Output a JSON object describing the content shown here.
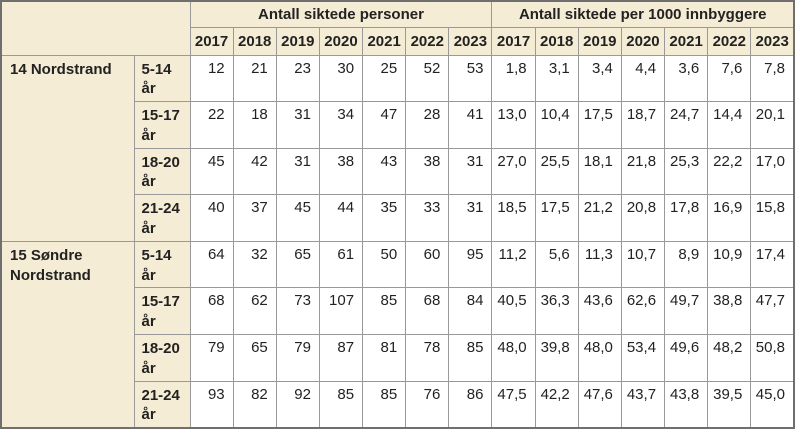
{
  "table": {
    "group_headers": {
      "counts": "Antall siktede personer",
      "per_1000": "Antall siktede per 1000 innbyggere"
    },
    "years": [
      "2017",
      "2018",
      "2019",
      "2020",
      "2021",
      "2022",
      "2023"
    ],
    "sections": [
      {
        "district": "14 Nordstrand",
        "rows": [
          {
            "age": "5-14 år",
            "counts": [
              "12",
              "21",
              "23",
              "30",
              "25",
              "52",
              "53"
            ],
            "rates": [
              "1,8",
              "3,1",
              "3,4",
              "4,4",
              "3,6",
              "7,6",
              "7,8"
            ]
          },
          {
            "age": "15-17 år",
            "counts": [
              "22",
              "18",
              "31",
              "34",
              "47",
              "28",
              "41"
            ],
            "rates": [
              "13,0",
              "10,4",
              "17,5",
              "18,7",
              "24,7",
              "14,4",
              "20,1"
            ]
          },
          {
            "age": "18-20 år",
            "counts": [
              "45",
              "42",
              "31",
              "38",
              "43",
              "38",
              "31"
            ],
            "rates": [
              "27,0",
              "25,5",
              "18,1",
              "21,8",
              "25,3",
              "22,2",
              "17,0"
            ]
          },
          {
            "age": "21-24 år",
            "counts": [
              "40",
              "37",
              "45",
              "44",
              "35",
              "33",
              "31"
            ],
            "rates": [
              "18,5",
              "17,5",
              "21,2",
              "20,8",
              "17,8",
              "16,9",
              "15,8"
            ]
          }
        ]
      },
      {
        "district": "15 Søndre Nordstrand",
        "rows": [
          {
            "age": "5-14 år",
            "counts": [
              "64",
              "32",
              "65",
              "61",
              "50",
              "60",
              "95"
            ],
            "rates": [
              "11,2",
              "5,6",
              "11,3",
              "10,7",
              "8,9",
              "10,9",
              "17,4"
            ]
          },
          {
            "age": "15-17 år",
            "counts": [
              "68",
              "62",
              "73",
              "107",
              "85",
              "68",
              "84"
            ],
            "rates": [
              "40,5",
              "36,3",
              "43,6",
              "62,6",
              "49,7",
              "38,8",
              "47,7"
            ]
          },
          {
            "age": "18-20 år",
            "counts": [
              "79",
              "65",
              "79",
              "87",
              "81",
              "78",
              "85"
            ],
            "rates": [
              "48,0",
              "39,8",
              "48,0",
              "53,4",
              "49,6",
              "48,2",
              "50,8"
            ]
          },
          {
            "age": "21-24 år",
            "counts": [
              "93",
              "82",
              "92",
              "85",
              "85",
              "76",
              "86"
            ],
            "rates": [
              "47,5",
              "42,2",
              "47,6",
              "43,7",
              "43,8",
              "39,5",
              "45,0"
            ]
          }
        ]
      }
    ]
  },
  "colors": {
    "header_beige": "#f5ecd5",
    "cell_white": "#ffffff",
    "grid_border": "#999999",
    "outer_border": "#6f6f6f",
    "text": "#222222"
  },
  "chart_data": {
    "type": "table",
    "title": "",
    "column_groups": [
      "Antall siktede personer",
      "Antall siktede per 1000 innbyggere"
    ],
    "years": [
      2017,
      2018,
      2019,
      2020,
      2021,
      2022,
      2023
    ],
    "rows": [
      {
        "district": "14 Nordstrand",
        "age_group": "5-14 år",
        "antall_siktede_personer": [
          12,
          21,
          23,
          30,
          25,
          52,
          53
        ],
        "antall_siktede_per_1000_innbyggere": [
          1.8,
          3.1,
          3.4,
          4.4,
          3.6,
          7.6,
          7.8
        ]
      },
      {
        "district": "14 Nordstrand",
        "age_group": "15-17 år",
        "antall_siktede_personer": [
          22,
          18,
          31,
          34,
          47,
          28,
          41
        ],
        "antall_siktede_per_1000_innbyggere": [
          13.0,
          10.4,
          17.5,
          18.7,
          24.7,
          14.4,
          20.1
        ]
      },
      {
        "district": "14 Nordstrand",
        "age_group": "18-20 år",
        "antall_siktede_personer": [
          45,
          42,
          31,
          38,
          43,
          38,
          31
        ],
        "antall_siktede_per_1000_innbyggere": [
          27.0,
          25.5,
          18.1,
          21.8,
          25.3,
          22.2,
          17.0
        ]
      },
      {
        "district": "14 Nordstrand",
        "age_group": "21-24 år",
        "antall_siktede_personer": [
          40,
          37,
          45,
          44,
          35,
          33,
          31
        ],
        "antall_siktede_per_1000_innbyggere": [
          18.5,
          17.5,
          21.2,
          20.8,
          17.8,
          16.9,
          15.8
        ]
      },
      {
        "district": "15 Søndre Nordstrand",
        "age_group": "5-14 år",
        "antall_siktede_personer": [
          64,
          32,
          65,
          61,
          50,
          60,
          95
        ],
        "antall_siktede_per_1000_innbyggere": [
          11.2,
          5.6,
          11.3,
          10.7,
          8.9,
          10.9,
          17.4
        ]
      },
      {
        "district": "15 Søndre Nordstrand",
        "age_group": "15-17 år",
        "antall_siktede_personer": [
          68,
          62,
          73,
          107,
          85,
          68,
          84
        ],
        "antall_siktede_per_1000_innbyggere": [
          40.5,
          36.3,
          43.6,
          62.6,
          49.7,
          38.8,
          47.7
        ]
      },
      {
        "district": "15 Søndre Nordstrand",
        "age_group": "18-20 år",
        "antall_siktede_personer": [
          79,
          65,
          79,
          87,
          81,
          78,
          85
        ],
        "antall_siktede_per_1000_innbyggere": [
          48.0,
          39.8,
          48.0,
          53.4,
          49.6,
          48.2,
          50.8
        ]
      },
      {
        "district": "15 Søndre Nordstrand",
        "age_group": "21-24 år",
        "antall_siktede_personer": [
          93,
          82,
          92,
          85,
          85,
          76,
          86
        ],
        "antall_siktede_per_1000_innbyggere": [
          47.5,
          42.2,
          47.6,
          43.7,
          43.8,
          39.5,
          45.0
        ]
      }
    ]
  }
}
